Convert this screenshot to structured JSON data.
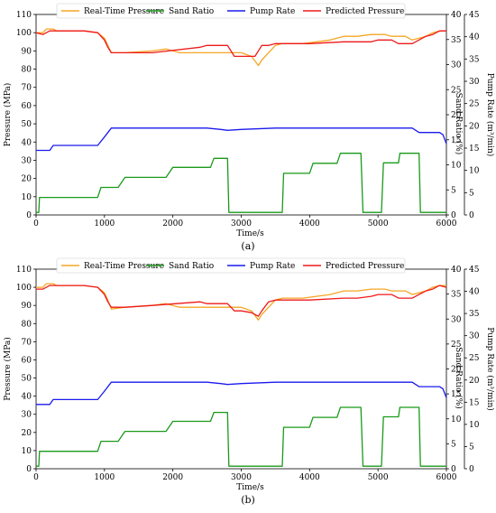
{
  "figure": {
    "panels": [
      "(a)",
      "(b)"
    ]
  },
  "legend": [
    {
      "name": "Real-Time Pressure",
      "color": "#f5a623"
    },
    {
      "name": "Sand Ratio",
      "color": "#1a9a1a"
    },
    {
      "name": "Pump Rate",
      "color": "#1a1aee"
    },
    {
      "name": "Predicted Pressure",
      "color": "#ee1a1a"
    }
  ],
  "axes": {
    "xlabel": "Time/s",
    "ylabel_left": "Pressure (MPa)",
    "ylabel_mid": "Sand Ratio (%)",
    "ylabel_right": "Pump Rate (m³/min)",
    "xticks": [
      "0",
      "1000",
      "2000",
      "3000",
      "4000",
      "5000",
      "6000"
    ],
    "yticks_left": [
      "0",
      "10",
      "20",
      "30",
      "40",
      "50",
      "60",
      "70",
      "80",
      "90",
      "100",
      "110"
    ],
    "yticks_mid": [
      "0",
      "5",
      "10",
      "15",
      "20",
      "25",
      "30",
      "35",
      "40"
    ],
    "yticks_right": [
      "0",
      "5",
      "10",
      "15",
      "20",
      "25",
      "30",
      "35",
      "40",
      "45"
    ]
  },
  "chart_data": [
    {
      "type": "line",
      "panel": "(a)",
      "xlim": [
        0,
        6000
      ],
      "ylim_pressure": [
        0,
        110
      ],
      "ylim_sand_ratio": [
        0,
        40
      ],
      "ylim_pump_rate": [
        0,
        45
      ],
      "series": [
        {
          "name": "Real-Time Pressure",
          "axis": "pressure",
          "x": [
            0,
            100,
            150,
            250,
            300,
            700,
            900,
            1000,
            1050,
            1100,
            1300,
            1700,
            1900,
            2100,
            2400,
            2800,
            2900,
            3000,
            3150,
            3250,
            3300,
            3400,
            3500,
            3600,
            3700,
            3900,
            4100,
            4300,
            4500,
            4700,
            4900,
            5100,
            5200,
            5400,
            5500,
            5600,
            5700,
            5800,
            5900,
            6000
          ],
          "y": [
            100,
            100,
            102,
            102,
            101,
            101,
            100,
            97,
            93,
            89,
            89,
            90,
            91,
            89,
            89,
            89,
            89,
            89,
            87,
            82,
            85,
            89,
            93,
            94,
            94,
            94,
            95,
            96,
            98,
            98,
            99,
            99,
            98,
            98,
            96,
            97,
            98,
            100,
            101,
            101
          ]
        },
        {
          "name": "Sand Ratio",
          "axis": "sand_ratio",
          "x": [
            0,
            40,
            50,
            450,
            470,
            900,
            950,
            1200,
            1300,
            1900,
            2000,
            2550,
            2600,
            2800,
            2820,
            3600,
            3620,
            4000,
            4050,
            4400,
            4450,
            4750,
            4780,
            5050,
            5080,
            5300,
            5320,
            5600,
            5620,
            6000
          ],
          "y": [
            0.5,
            0.5,
            3.5,
            3.5,
            3.5,
            3.5,
            5.5,
            5.5,
            7.5,
            7.5,
            9.5,
            9.5,
            11.3,
            11.3,
            0.5,
            0.5,
            8.3,
            8.3,
            10.3,
            10.3,
            12.3,
            12.3,
            0.5,
            0.5,
            10.4,
            10.4,
            12.3,
            12.3,
            0.5,
            0.5
          ]
        },
        {
          "name": "Pump Rate",
          "axis": "pump_rate",
          "x": [
            0,
            200,
            250,
            900,
            1000,
            1100,
            1500,
            2500,
            2700,
            2800,
            3000,
            3500,
            4500,
            5500,
            5600,
            5900,
            5950,
            6000
          ],
          "y": [
            14.5,
            14.5,
            15.6,
            15.6,
            17.5,
            19.5,
            19.5,
            19.5,
            19.2,
            19.0,
            19.2,
            19.5,
            19.5,
            19.5,
            18.5,
            18.5,
            18.0,
            16.0
          ]
        },
        {
          "name": "Predicted Pressure",
          "axis": "pressure",
          "x": [
            0,
            100,
            200,
            300,
            700,
            900,
            1000,
            1050,
            1100,
            1300,
            1700,
            2400,
            2500,
            2800,
            2900,
            3000,
            3200,
            3300,
            3400,
            3500,
            4000,
            4500,
            4700,
            4900,
            5000,
            5200,
            5300,
            5500,
            5700,
            5800,
            5900,
            6000
          ],
          "y": [
            100,
            99,
            101,
            101,
            101,
            100,
            96,
            92,
            89,
            89,
            89,
            92,
            93,
            93,
            87,
            87,
            87,
            93,
            93,
            94,
            94,
            95,
            95,
            95,
            96,
            96,
            94,
            94,
            98,
            99,
            101,
            101
          ]
        }
      ]
    },
    {
      "type": "line",
      "panel": "(b)",
      "xlim": [
        0,
        6000
      ],
      "ylim_pressure": [
        0,
        110
      ],
      "ylim_sand_ratio": [
        0,
        40
      ],
      "ylim_pump_rate": [
        0,
        45
      ],
      "series": [
        {
          "name": "Real-Time Pressure",
          "axis": "pressure",
          "x": [
            0,
            100,
            150,
            250,
            300,
            700,
            900,
            1000,
            1050,
            1100,
            1300,
            1700,
            1900,
            2100,
            2400,
            2800,
            2900,
            3000,
            3150,
            3250,
            3300,
            3400,
            3500,
            3600,
            3700,
            3900,
            4100,
            4300,
            4500,
            4700,
            4900,
            5100,
            5200,
            5400,
            5500,
            5600,
            5700,
            5800,
            5900,
            6000
          ],
          "y": [
            100,
            100,
            102,
            102,
            101,
            101,
            100,
            97,
            93,
            88,
            89,
            90,
            91,
            89,
            89,
            89,
            89,
            89,
            87,
            82,
            85,
            89,
            93,
            94,
            94,
            94,
            95,
            96,
            98,
            98,
            99,
            99,
            98,
            98,
            96,
            97,
            98,
            100,
            101,
            101
          ]
        },
        {
          "name": "Sand Ratio",
          "axis": "sand_ratio",
          "x": [
            0,
            40,
            50,
            450,
            470,
            900,
            950,
            1200,
            1300,
            1900,
            2000,
            2550,
            2600,
            2800,
            2820,
            3600,
            3620,
            4000,
            4050,
            4400,
            4450,
            4750,
            4780,
            5050,
            5080,
            5300,
            5320,
            5600,
            5620,
            6000
          ],
          "y": [
            0.5,
            0.5,
            3.5,
            3.5,
            3.5,
            3.5,
            5.5,
            5.5,
            7.5,
            7.5,
            9.5,
            9.5,
            11.3,
            11.3,
            0.5,
            0.5,
            8.3,
            8.3,
            10.3,
            10.3,
            12.3,
            12.3,
            0.5,
            0.5,
            10.4,
            10.4,
            12.3,
            12.3,
            0.5,
            0.5
          ]
        },
        {
          "name": "Pump Rate",
          "axis": "pump_rate",
          "x": [
            0,
            200,
            250,
            900,
            1000,
            1100,
            1500,
            2500,
            2700,
            2800,
            3000,
            3500,
            4500,
            5500,
            5600,
            5900,
            5950,
            6000
          ],
          "y": [
            14.5,
            14.5,
            15.6,
            15.6,
            17.5,
            19.5,
            19.5,
            19.5,
            19.2,
            19.0,
            19.2,
            19.5,
            19.5,
            19.5,
            18.5,
            18.5,
            18.0,
            16.0
          ]
        },
        {
          "name": "Predicted Pressure",
          "axis": "pressure",
          "x": [
            0,
            100,
            200,
            300,
            700,
            900,
            1000,
            1050,
            1100,
            1300,
            1700,
            2400,
            2500,
            2800,
            2900,
            3000,
            3150,
            3250,
            3300,
            3400,
            3500,
            4000,
            4500,
            4700,
            4900,
            5000,
            5200,
            5300,
            5500,
            5700,
            5800,
            5900,
            6000
          ],
          "y": [
            99,
            99,
            101,
            101,
            101,
            100,
            96,
            92,
            89,
            89,
            90,
            92,
            91,
            91,
            87,
            87,
            86,
            84,
            87,
            92,
            93,
            93,
            94,
            94,
            95,
            96,
            96,
            94,
            94,
            98,
            99,
            101,
            100
          ]
        }
      ]
    }
  ]
}
